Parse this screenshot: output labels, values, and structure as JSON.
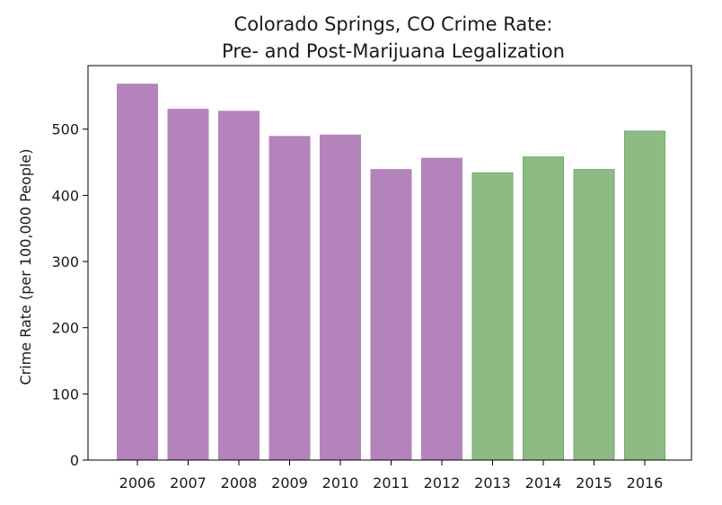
{
  "chart_data": {
    "type": "bar",
    "title_line1": "Colorado Springs, CO Crime Rate:",
    "title_line2": "Pre- and Post-Marijuana Legalization",
    "xlabel": "",
    "ylabel": "Crime Rate (per 100,000 People)",
    "categories": [
      "2006",
      "2007",
      "2008",
      "2009",
      "2010",
      "2011",
      "2012",
      "2013",
      "2014",
      "2015",
      "2016"
    ],
    "values": [
      568,
      530,
      527,
      489,
      491,
      439,
      456,
      434,
      458,
      439,
      497
    ],
    "bar_colors": [
      "#b583bb",
      "#b583bb",
      "#b583bb",
      "#b583bb",
      "#b583bb",
      "#b583bb",
      "#b583bb",
      "#8dbb84",
      "#8dbb84",
      "#8dbb84",
      "#8dbb84"
    ],
    "bar_edge_colors": [
      "#b583bb",
      "#b583bb",
      "#b583bb",
      "#b583bb",
      "#b583bb",
      "#b583bb",
      "#b583bb",
      "#74a96b",
      "#74a96b",
      "#74a96b",
      "#74a96b"
    ],
    "yticks": [
      "0",
      "100",
      "200",
      "300",
      "400",
      "500"
    ],
    "ylim": [
      0,
      596
    ],
    "grid": false,
    "legend": "none"
  }
}
